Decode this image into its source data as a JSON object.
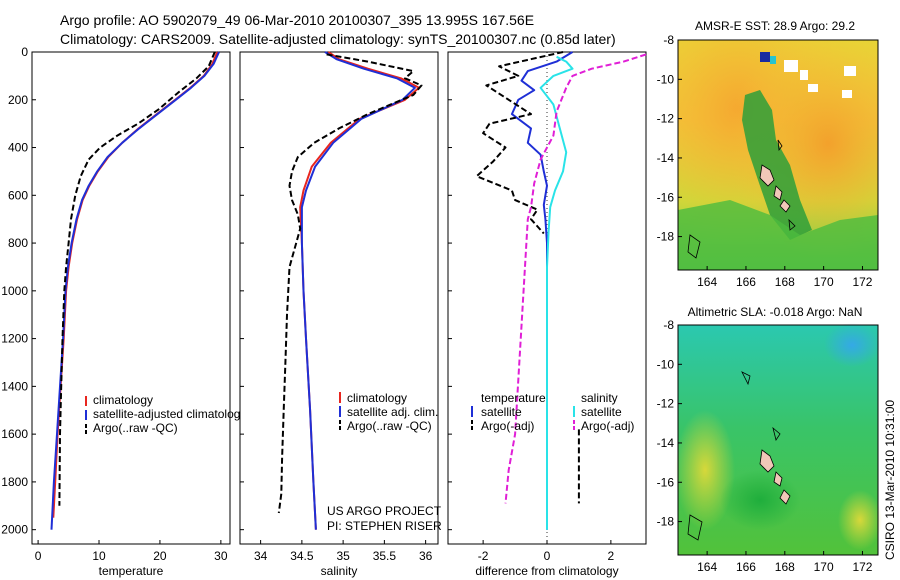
{
  "header": {
    "line1": "Argo profile: AO 5902079_49 06-Mar-2010 20100307_395 13.995S 167.56E",
    "line2": "Climatology: CARS2009. Satellite-adjusted climatology: synTS_20100307.nc (0.85d later)"
  },
  "footer": {
    "project": "US ARGO PROJECT",
    "pi": "PI: STEPHEN RISER",
    "credit": "CSIRO 13-Mar-2010 10:31:00"
  },
  "colors": {
    "climatology": "#e8261f",
    "satellite": "#1f2fd6",
    "argo": "#000000",
    "sal_satellite": "#29e3e8",
    "sal_argo": "#e01fd6"
  },
  "chart_data": [
    {
      "type": "line",
      "xlabel": "temperature",
      "ylabel": "",
      "xlim": [
        -1,
        31.5
      ],
      "ylim": [
        2060,
        0
      ],
      "x_ticks": [
        0,
        10,
        20,
        30
      ],
      "y_ticks": [
        0,
        200,
        400,
        600,
        800,
        1000,
        1200,
        1400,
        1600,
        1800,
        2000
      ],
      "legend": [
        "climatology",
        "satellite-adjusted climatolog",
        "Argo(..raw -QC)"
      ],
      "series": [
        {
          "name": "climatology",
          "style": "solid",
          "color": "#e8261f",
          "points": [
            [
              29.4,
              0
            ],
            [
              28.6,
              50
            ],
            [
              27.2,
              100
            ],
            [
              25.0,
              150
            ],
            [
              22.5,
              200
            ],
            [
              19.5,
              260
            ],
            [
              16.5,
              320
            ],
            [
              13.8,
              380
            ],
            [
              11.5,
              440
            ],
            [
              9.8,
              500
            ],
            [
              8.4,
              560
            ],
            [
              7.3,
              620
            ],
            [
              6.4,
              700
            ],
            [
              5.6,
              800
            ],
            [
              5.0,
              900
            ],
            [
              4.6,
              1000
            ],
            [
              4.2,
              1200
            ],
            [
              3.7,
              1400
            ],
            [
              3.2,
              1600
            ],
            [
              2.8,
              1800
            ],
            [
              2.5,
              1950
            ]
          ]
        },
        {
          "name": "satellite-adjusted climatolog",
          "style": "solid",
          "color": "#1f2fd6",
          "points": [
            [
              29.7,
              0
            ],
            [
              28.8,
              50
            ],
            [
              27.3,
              100
            ],
            [
              25.1,
              150
            ],
            [
              22.6,
              200
            ],
            [
              19.6,
              260
            ],
            [
              16.6,
              320
            ],
            [
              13.8,
              380
            ],
            [
              11.4,
              440
            ],
            [
              9.7,
              500
            ],
            [
              8.3,
              560
            ],
            [
              7.2,
              620
            ],
            [
              6.3,
              700
            ],
            [
              5.5,
              800
            ],
            [
              4.9,
              900
            ],
            [
              4.5,
              1000
            ],
            [
              4.1,
              1200
            ],
            [
              3.6,
              1400
            ],
            [
              3.1,
              1600
            ],
            [
              2.6,
              1800
            ],
            [
              2.2,
              2000
            ]
          ]
        },
        {
          "name": "Argo(..raw -QC)",
          "style": "dash",
          "color": "#000000",
          "points": [
            [
              29.0,
              0
            ],
            [
              28.0,
              60
            ],
            [
              26.0,
              110
            ],
            [
              23.0,
              170
            ],
            [
              19.8,
              240
            ],
            [
              16.4,
              300
            ],
            [
              13.0,
              350
            ],
            [
              10.2,
              400
            ],
            [
              8.3,
              450
            ],
            [
              7.0,
              520
            ],
            [
              6.1,
              600
            ],
            [
              5.4,
              700
            ],
            [
              5.0,
              800
            ],
            [
              4.6,
              900
            ],
            [
              4.3,
              1000
            ],
            [
              4.0,
              1200
            ],
            [
              3.8,
              1400
            ],
            [
              3.6,
              1600
            ],
            [
              3.5,
              1900
            ]
          ]
        }
      ]
    },
    {
      "type": "line",
      "xlabel": "salinity",
      "ylabel": "",
      "xlim": [
        33.75,
        36.15
      ],
      "ylim": [
        2060,
        0
      ],
      "x_ticks": [
        34,
        34.5,
        35,
        35.5,
        36
      ],
      "legend": [
        "climatology",
        "satellite adj. clim.",
        "Argo(..raw -QC)"
      ],
      "series": [
        {
          "name": "climatology",
          "style": "solid",
          "color": "#e8261f",
          "points": [
            [
              34.82,
              0
            ],
            [
              34.95,
              30
            ],
            [
              35.3,
              70
            ],
            [
              35.7,
              110
            ],
            [
              35.92,
              150
            ],
            [
              35.75,
              200
            ],
            [
              35.2,
              280
            ],
            [
              34.85,
              380
            ],
            [
              34.62,
              480
            ],
            [
              34.52,
              580
            ],
            [
              34.48,
              650
            ],
            [
              34.5,
              800
            ],
            [
              34.52,
              1000
            ],
            [
              34.55,
              1200
            ],
            [
              34.6,
              1500
            ],
            [
              34.64,
              1800
            ],
            [
              34.67,
              2000
            ]
          ]
        },
        {
          "name": "satellite adj. clim.",
          "style": "solid",
          "color": "#1f2fd6",
          "points": [
            [
              34.78,
              0
            ],
            [
              34.92,
              30
            ],
            [
              35.25,
              70
            ],
            [
              35.65,
              110
            ],
            [
              35.87,
              150
            ],
            [
              35.72,
              200
            ],
            [
              35.22,
              280
            ],
            [
              34.88,
              380
            ],
            [
              34.66,
              480
            ],
            [
              34.55,
              580
            ],
            [
              34.5,
              650
            ],
            [
              34.5,
              800
            ],
            [
              34.52,
              1000
            ],
            [
              34.55,
              1200
            ],
            [
              34.6,
              1500
            ],
            [
              34.64,
              1800
            ],
            [
              34.67,
              2000
            ]
          ]
        },
        {
          "name": "Argo(..raw -QC)",
          "style": "dash",
          "color": "#000000",
          "points": [
            [
              34.8,
              10
            ],
            [
              35.3,
              40
            ],
            [
              35.85,
              80
            ],
            [
              35.75,
              110
            ],
            [
              35.95,
              140
            ],
            [
              35.85,
              180
            ],
            [
              35.3,
              260
            ],
            [
              34.95,
              320
            ],
            [
              34.65,
              380
            ],
            [
              34.45,
              440
            ],
            [
              34.38,
              500
            ],
            [
              34.35,
              560
            ],
            [
              34.38,
              620
            ],
            [
              34.45,
              680
            ],
            [
              34.48,
              740
            ],
            [
              34.35,
              900
            ],
            [
              34.32,
              1100
            ],
            [
              34.3,
              1300
            ],
            [
              34.28,
              1500
            ],
            [
              34.26,
              1700
            ],
            [
              34.25,
              1850
            ],
            [
              34.22,
              1930
            ]
          ]
        }
      ]
    },
    {
      "type": "line",
      "xlabel": "difference from climatology",
      "ylabel": "",
      "xlim": [
        -3.1,
        3.1
      ],
      "ylim": [
        2060,
        0
      ],
      "x_ticks": [
        -2,
        0,
        2
      ],
      "legend_temperature_heading": "temperature",
      "legend_salinity_heading": "salinity",
      "legend": [
        "satellite",
        "Argo(-adj)",
        "satellite",
        "Argo(-adj)"
      ],
      "series": [
        {
          "name": "satellite",
          "group": "temperature",
          "style": "solid",
          "color": "#1f2fd6",
          "points": [
            [
              0.8,
              0
            ],
            [
              0.3,
              40
            ],
            [
              -0.6,
              80
            ],
            [
              -0.8,
              120
            ],
            [
              -0.4,
              160
            ],
            [
              -0.9,
              200
            ],
            [
              -1.1,
              260
            ],
            [
              -0.5,
              320
            ],
            [
              -0.6,
              380
            ],
            [
              -0.2,
              430
            ],
            [
              -0.1,
              500
            ],
            [
              0.0,
              560
            ],
            [
              -0.1,
              640
            ],
            [
              -0.05,
              700
            ],
            [
              0.0,
              800
            ],
            [
              0.0,
              1000
            ],
            [
              0.0,
              1200
            ],
            [
              0.0,
              1600
            ],
            [
              0.0,
              2000
            ]
          ]
        },
        {
          "name": "Argo(-adj)",
          "group": "temperature",
          "style": "dash",
          "color": "#000000",
          "points": [
            [
              0.5,
              0
            ],
            [
              -1.5,
              60
            ],
            [
              -0.9,
              100
            ],
            [
              -1.9,
              140
            ],
            [
              -1.2,
              200
            ],
            [
              -0.5,
              260
            ],
            [
              -1.8,
              300
            ],
            [
              -2.0,
              340
            ],
            [
              -1.3,
              400
            ],
            [
              -1.7,
              460
            ],
            [
              -2.2,
              520
            ],
            [
              -1.1,
              580
            ],
            [
              -1.0,
              620
            ],
            [
              -0.3,
              660
            ],
            [
              -0.5,
              700
            ],
            [
              -0.1,
              760
            ]
          ]
        },
        {
          "name": "satellite",
          "group": "salinity",
          "style": "solid",
          "color": "#29e3e8",
          "points": [
            [
              0.3,
              20
            ],
            [
              0.6,
              40
            ],
            [
              0.8,
              70
            ],
            [
              0.2,
              100
            ],
            [
              -0.2,
              150
            ],
            [
              0.2,
              220
            ],
            [
              0.4,
              320
            ],
            [
              0.6,
              420
            ],
            [
              0.5,
              500
            ],
            [
              0.25,
              580
            ],
            [
              0.1,
              650
            ],
            [
              0.05,
              750
            ],
            [
              0.0,
              900
            ],
            [
              0.0,
              1200
            ],
            [
              0.0,
              1600
            ],
            [
              0.0,
              2000
            ]
          ]
        },
        {
          "name": "Argo(-adj)",
          "group": "salinity",
          "style": "dash",
          "color": "#e01fd6",
          "points": [
            [
              3.1,
              10
            ],
            [
              2.4,
              40
            ],
            [
              1.4,
              70
            ],
            [
              0.8,
              100
            ],
            [
              0.6,
              150
            ],
            [
              0.3,
              250
            ],
            [
              0.2,
              350
            ],
            [
              -0.2,
              450
            ],
            [
              -0.4,
              550
            ],
            [
              -0.5,
              650
            ],
            [
              -0.6,
              700
            ],
            [
              -1.0,
              1600
            ],
            [
              -1.2,
              1750
            ],
            [
              -1.3,
              1890
            ]
          ]
        },
        {
          "name": "salinity-argo-deep",
          "group": "salinity",
          "style": "dash",
          "color": "#000000",
          "points": [
            [
              1.0,
              1580
            ],
            [
              1.0,
              1890
            ]
          ]
        }
      ]
    },
    {
      "type": "heatmap",
      "title": "AMSR-E SST: 28.9 Argo: 29.2",
      "x_ticks": [
        164,
        166,
        168,
        170,
        172
      ],
      "y_ticks": [
        -8,
        -10,
        -12,
        -14,
        -16,
        -18
      ],
      "xlim": [
        162.5,
        172.8
      ],
      "ylim": [
        -19.7,
        -8
      ]
    },
    {
      "type": "heatmap",
      "title": "Altimetric SLA: -0.018 Argo: NaN",
      "x_ticks": [
        164,
        166,
        168,
        170,
        172
      ],
      "y_ticks": [
        -8,
        -10,
        -12,
        -14,
        -16,
        -18
      ],
      "xlim": [
        162.5,
        172.8
      ],
      "ylim": [
        -19.7,
        -8
      ]
    }
  ]
}
